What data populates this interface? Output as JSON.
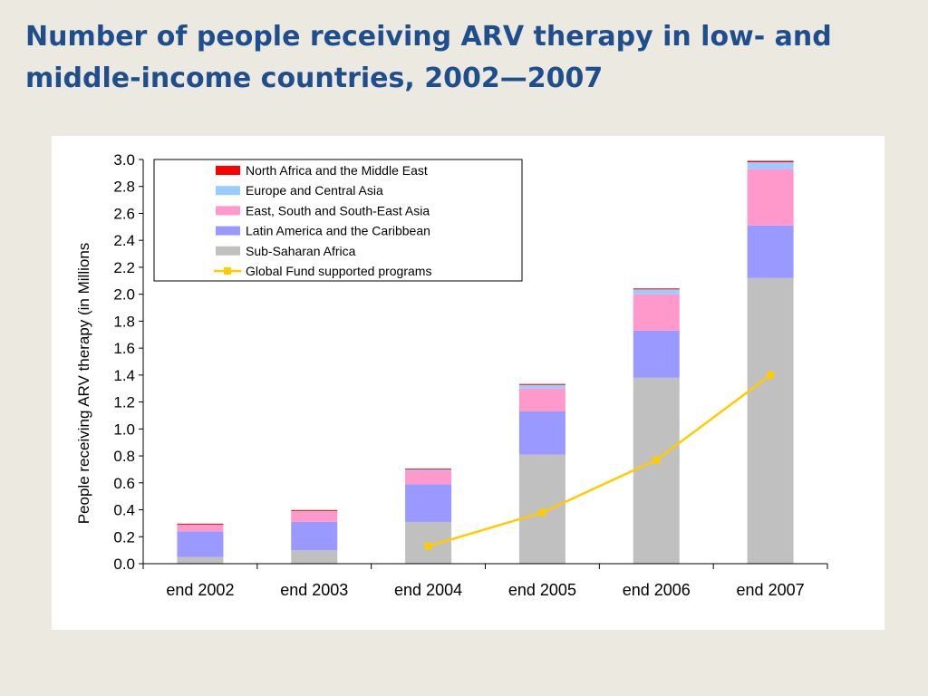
{
  "slide": {
    "title": "Number of people receiving ARV therapy in low- and middle-income countries, 2002—2007"
  },
  "chart_data": {
    "type": "bar",
    "stacked": true,
    "title": "",
    "xlabel": "",
    "ylabel": "People receiving ARV therapy (in Millions",
    "ylim": [
      0,
      3.0
    ],
    "yticks": [
      "0.0",
      "0.2",
      "0.4",
      "0.6",
      "0.8",
      "1.0",
      "1.2",
      "1.4",
      "1.6",
      "1.8",
      "2.0",
      "2.2",
      "2.4",
      "2.6",
      "2.8",
      "3.0"
    ],
    "categories": [
      "end 2002",
      "end 2003",
      "end 2004",
      "end 2005",
      "end 2006",
      "end 2007"
    ],
    "legend_position": "top-left",
    "series": [
      {
        "name": "Sub-Saharan Africa",
        "color": "#c0c0c0",
        "values": [
          0.05,
          0.1,
          0.31,
          0.81,
          1.38,
          2.12
        ]
      },
      {
        "name": "Latin America and the Caribbean",
        "color": "#9999ff",
        "values": [
          0.19,
          0.21,
          0.28,
          0.32,
          0.35,
          0.39
        ]
      },
      {
        "name": "East, South and South-East Asia",
        "color": "#ff99cc",
        "values": [
          0.05,
          0.08,
          0.1,
          0.17,
          0.27,
          0.42
        ]
      },
      {
        "name": "Europe and Central Asia",
        "color": "#99ccff",
        "values": [
          0.005,
          0.005,
          0.01,
          0.03,
          0.04,
          0.05
        ]
      },
      {
        "name": "North Africa and the Middle East",
        "color": "#ff0000",
        "values": [
          0.002,
          0.003,
          0.005,
          0.004,
          0.003,
          0.01
        ]
      }
    ],
    "line_series": {
      "name": "Global Fund supported programs",
      "color": "#ffcc00",
      "values": [
        null,
        null,
        0.13,
        0.38,
        0.77,
        1.4
      ]
    },
    "legend_order": [
      "North Africa and the Middle East",
      "Europe and Central Asia",
      "East, South and South-East Asia",
      "Latin America and the Caribbean",
      "Sub-Saharan Africa",
      "Global Fund supported programs"
    ]
  }
}
